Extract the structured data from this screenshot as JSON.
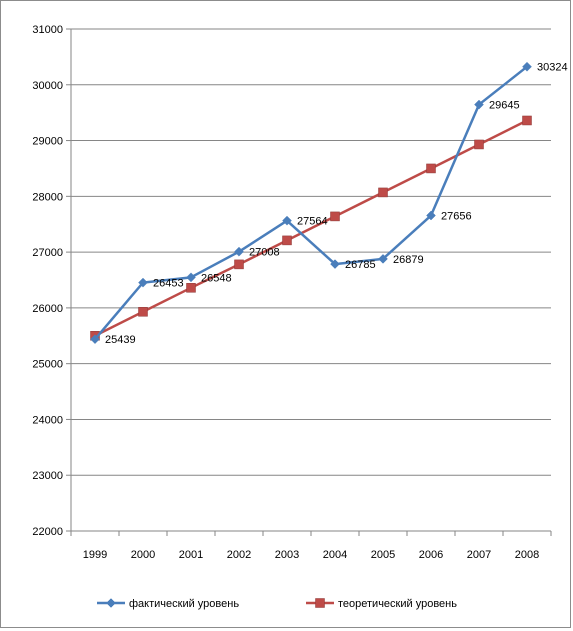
{
  "chart_data": {
    "type": "line",
    "title": "",
    "xlabel": "",
    "ylabel": "",
    "categories": [
      "1999",
      "2000",
      "2001",
      "2002",
      "2003",
      "2004",
      "2005",
      "2006",
      "2007",
      "2008"
    ],
    "ylim": [
      22000,
      31000
    ],
    "y_ticks": [
      "22000",
      "23000",
      "24000",
      "25000",
      "26000",
      "27000",
      "28000",
      "29000",
      "30000",
      "31000"
    ],
    "grid": true,
    "legend_position": "bottom",
    "series": [
      {
        "name": "фактический уровень",
        "color": "#4a7ebb",
        "marker": "diamond",
        "values": [
          25439,
          26453,
          26548,
          27008,
          27564,
          26785,
          26879,
          27656,
          29645,
          30324
        ],
        "labels": [
          "25439",
          "26453",
          "26548",
          "27008",
          "27564",
          "26785",
          "26879",
          "27656",
          "29645",
          "30324"
        ]
      },
      {
        "name": "теоретический уровень",
        "color": "#be4b48",
        "marker": "square",
        "values": [
          25500,
          25930,
          26360,
          26780,
          27210,
          27640,
          28070,
          28500,
          28930,
          29360
        ]
      }
    ]
  }
}
